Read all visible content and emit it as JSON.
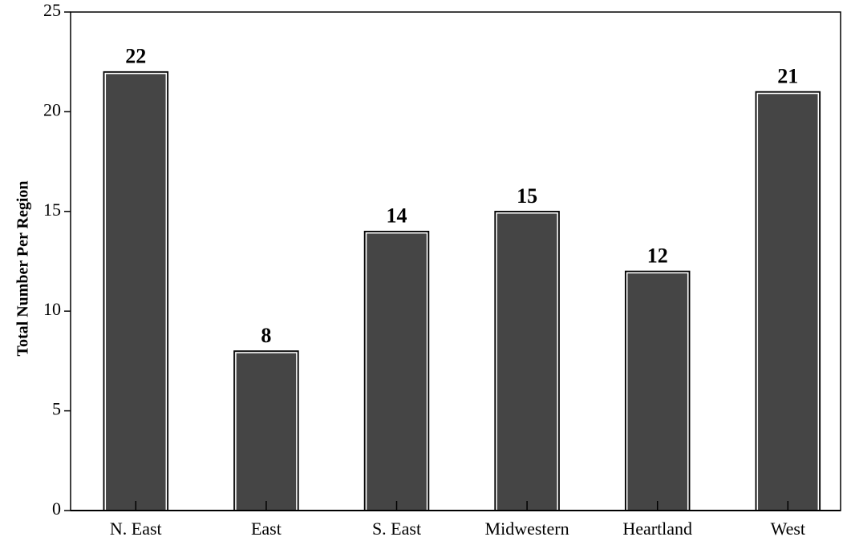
{
  "chart_data": {
    "type": "bar",
    "y_label": "Total Number Per Region",
    "categories": [
      "N. East",
      "East",
      "S. East",
      "Midwestern",
      "Heartland",
      "West"
    ],
    "values": [
      22,
      8,
      14,
      15,
      12,
      21
    ],
    "color": "#454545",
    "ylim": [
      0,
      25
    ],
    "yticks": [
      0,
      5,
      10,
      15,
      20,
      25
    ],
    "grid": false
  }
}
